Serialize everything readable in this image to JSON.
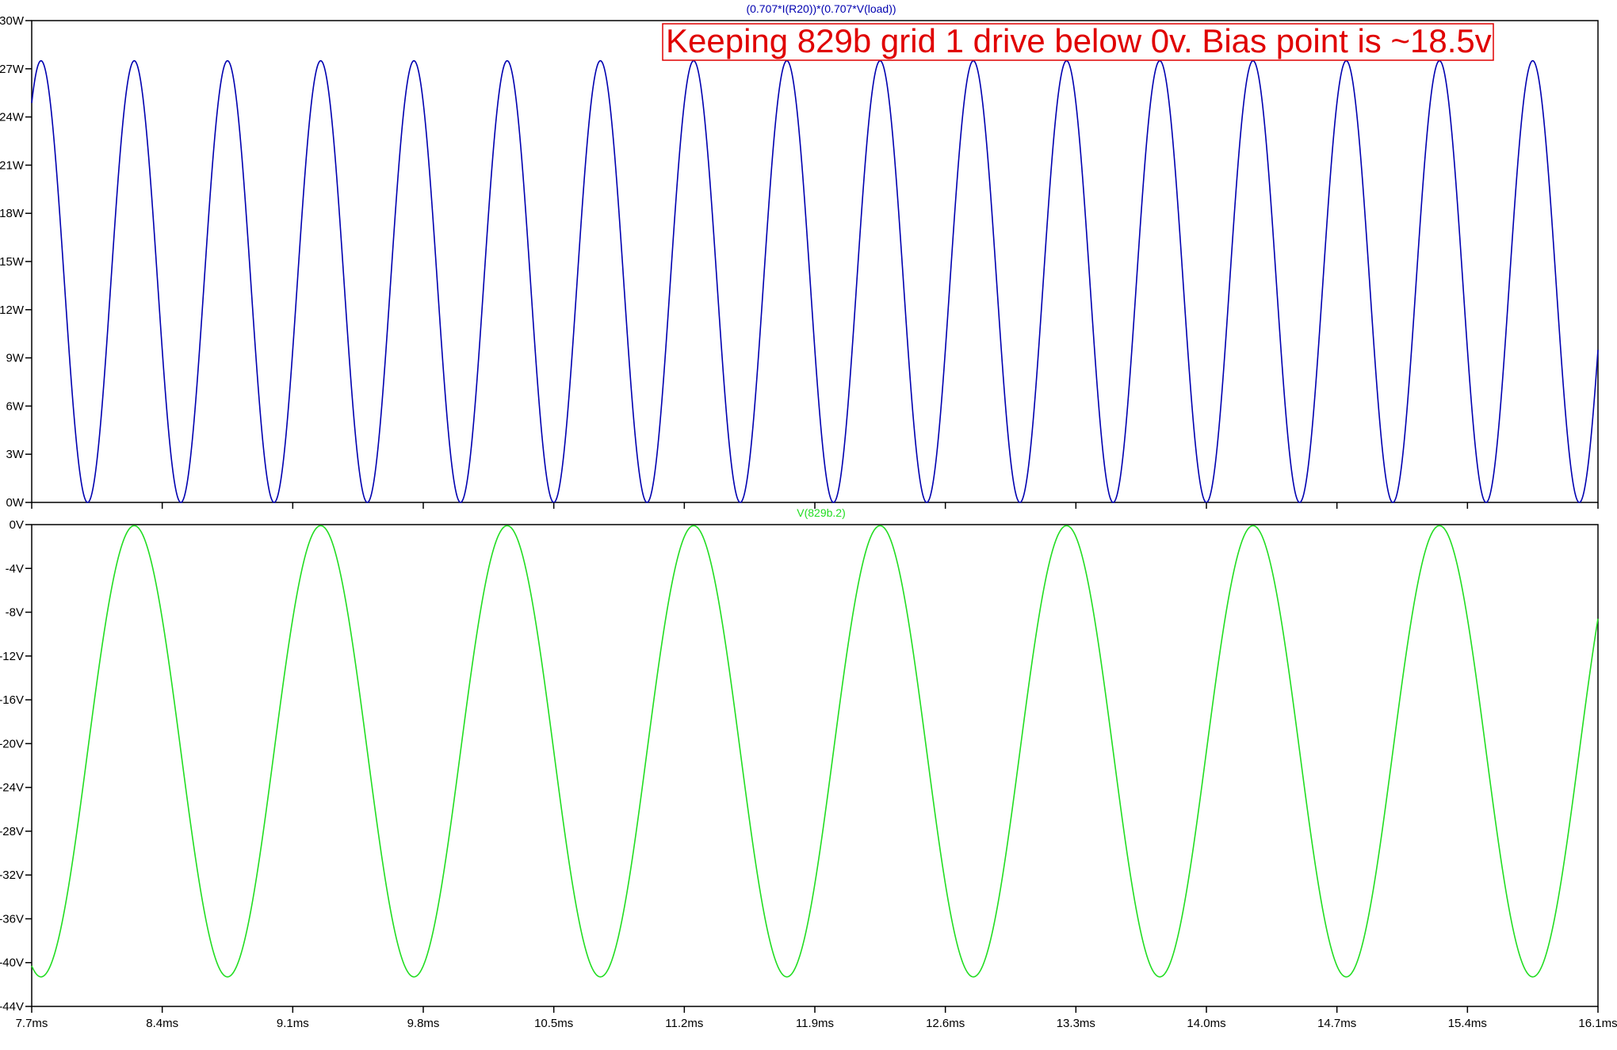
{
  "annotation": {
    "text": "Keeping 829b grid 1 drive below 0v. Bias point is ~18.5v",
    "color": "#e00000"
  },
  "chart_data": [
    {
      "type": "line",
      "trace_title": "(0.707*I(R20))*(0.707*V(load))",
      "color": "#0000b0",
      "waveform": "sine-squared",
      "x_unit": "ms",
      "y_unit": "W",
      "xlim": [
        7.7,
        16.1
      ],
      "ylim": [
        0,
        30
      ],
      "ytick_values": [
        0,
        3,
        6,
        9,
        12,
        15,
        18,
        21,
        24,
        27,
        30
      ],
      "ytick_labels": [
        "0W",
        "3W",
        "6W",
        "9W",
        "12W",
        "15W",
        "18W",
        "21W",
        "24W",
        "27W",
        "30W"
      ],
      "peak_value": 27.5,
      "min_value": 0,
      "period_ms": 0.5,
      "first_peak_ms": 7.75,
      "grid": false
    },
    {
      "type": "line",
      "trace_title": "V(829b.2)",
      "color": "#22dd22",
      "waveform": "sine",
      "x_unit": "ms",
      "y_unit": "V",
      "xlim": [
        7.7,
        16.1
      ],
      "ylim": [
        -44,
        0
      ],
      "ytick_values": [
        0,
        -4,
        -8,
        -12,
        -16,
        -20,
        -24,
        -28,
        -32,
        -36,
        -40,
        -44
      ],
      "ytick_labels": [
        "0V",
        "-4V",
        "-8V",
        "-12V",
        "-16V",
        "-20V",
        "-24V",
        "-28V",
        "-32V",
        "-36V",
        "-40V",
        "-44V"
      ],
      "max_value": -0.1,
      "min_value": -41.3,
      "bias_value": -20.7,
      "period_ms": 1.0,
      "first_peak_ms": 8.25,
      "xtick_values": [
        7.7,
        8.4,
        9.1,
        9.8,
        10.5,
        11.2,
        11.9,
        12.6,
        13.3,
        14.0,
        14.7,
        15.4,
        16.1
      ],
      "xtick_labels": [
        "7.7ms",
        "8.4ms",
        "9.1ms",
        "9.8ms",
        "10.5ms",
        "11.2ms",
        "11.9ms",
        "12.6ms",
        "13.3ms",
        "14.0ms",
        "14.7ms",
        "15.4ms",
        "16.1ms"
      ],
      "grid": false
    }
  ]
}
